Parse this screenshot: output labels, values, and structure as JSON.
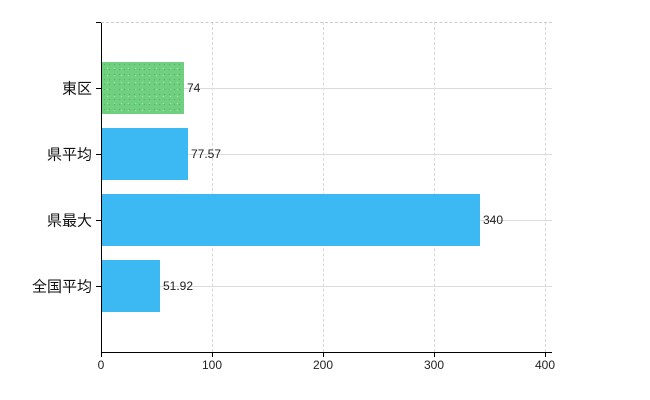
{
  "chart_data": {
    "type": "bar",
    "orientation": "horizontal",
    "title": "",
    "xlabel": "",
    "ylabel": "",
    "categories": [
      "東区",
      "県平均",
      "県最大",
      "全国平均"
    ],
    "values": [
      74,
      77.57,
      340,
      51.92
    ],
    "value_labels": [
      "74",
      "77.57",
      "340",
      "51.92"
    ],
    "series": [
      {
        "name": "東区",
        "value": 74,
        "color": "#6fd07f"
      },
      {
        "name": "県平均",
        "value": 77.57,
        "color": "#3cb9f3"
      },
      {
        "name": "県最大",
        "value": 340,
        "color": "#3cb9f3"
      },
      {
        "name": "全国平均",
        "value": 51.92,
        "color": "#3cb9f3"
      }
    ],
    "bar_colors": [
      "#6fd07f",
      "#3cb9f3",
      "#3cb9f3",
      "#3cb9f3"
    ],
    "x_tick_labels": [
      "0",
      "100",
      "200",
      "300",
      "400"
    ],
    "x_tick_values": [
      0,
      100,
      200,
      300,
      400
    ],
    "xlim": [
      0,
      406
    ],
    "grid": "vertical-dashed-at-ticks, horizontal-solid-at-category-centers, dashed-top-border",
    "legend": false
  },
  "colors": {
    "green_bar": "#6fd07f",
    "blue_bar": "#3cb9f3",
    "gridline_horizontal": "#d9ddd9",
    "gridline_vertical": "#d8d8d8",
    "top_border": "#cccccc",
    "axis": "#000000",
    "text": "#222222",
    "background": "#ffffff"
  }
}
